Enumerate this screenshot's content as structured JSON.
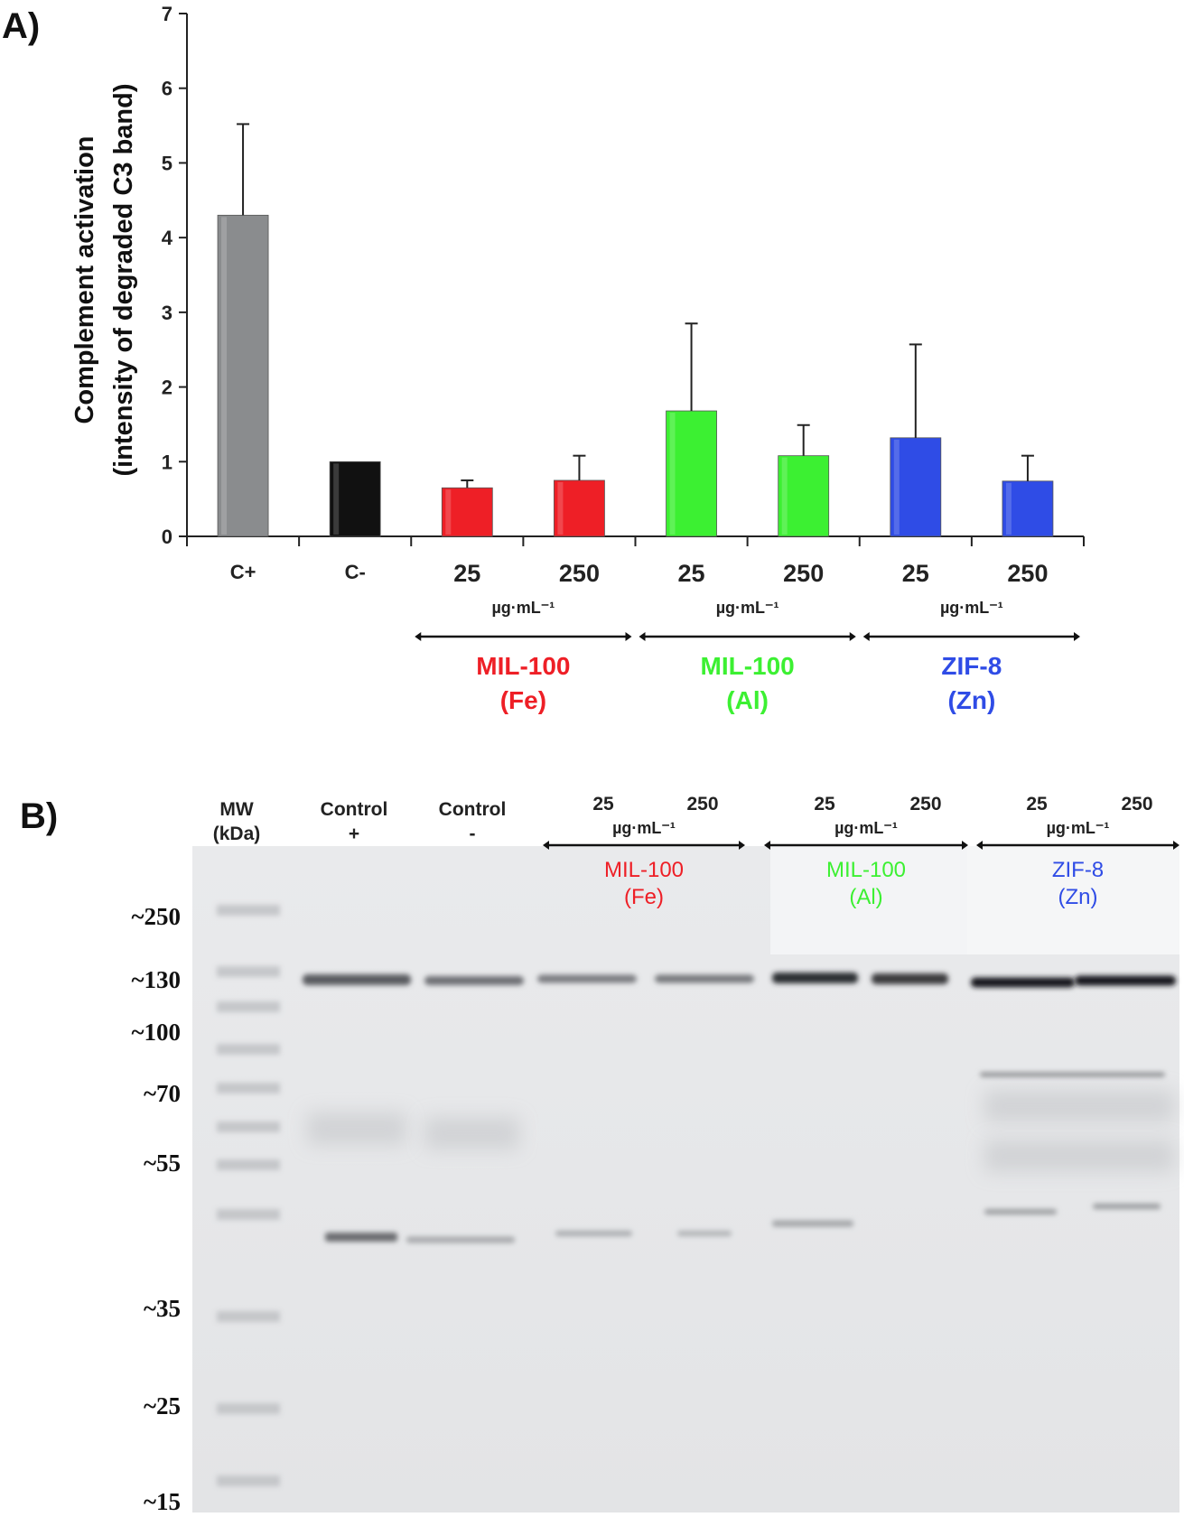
{
  "panel_a": {
    "label": "A)",
    "ylabel_line1": "Complement activation",
    "ylabel_line2": "(intensity of degraded C3 band)",
    "chart_data": {
      "type": "bar",
      "title": "",
      "ylim": [
        0,
        7
      ],
      "yticks": [
        "0",
        "1",
        "2",
        "3",
        "4",
        "5",
        "6",
        "7"
      ],
      "categories": [
        "C+",
        "C-",
        "25",
        "250",
        "25",
        "250",
        "25",
        "250"
      ],
      "values": [
        4.3,
        1.0,
        0.65,
        0.75,
        1.68,
        1.08,
        1.32,
        0.74
      ],
      "errors": [
        1.22,
        0,
        0.1,
        0.33,
        1.17,
        0.41,
        1.25,
        0.34
      ],
      "bar_colors": [
        "#8a8c8e",
        "#111111",
        "#ee1f26",
        "#ee1f26",
        "#3cf032",
        "#3cf032",
        "#2f4ce6",
        "#2f4ce6"
      ],
      "groups": [
        {
          "unit": "µg·mL⁻¹",
          "name_line1": "MIL-100",
          "name_line2": "(Fe)",
          "color": "#ee1f26"
        },
        {
          "unit": "µg·mL⁻¹",
          "name_line1": "MIL-100",
          "name_line2": "(Al)",
          "color": "#3cf032"
        },
        {
          "unit": "µg·mL⁻¹",
          "name_line1": "ZIF-8",
          "name_line2": "(Zn)",
          "color": "#2f4ce6"
        }
      ]
    }
  },
  "panel_b": {
    "label": "B)",
    "lanes": {
      "mw_line1": "MW",
      "mw_line2": "(kDa)",
      "cpos_line1": "Control",
      "cpos_line2": "+",
      "cneg_line1": "Control",
      "cneg_line2": "-"
    },
    "groups": [
      {
        "conc_low": "25",
        "conc_high": "250",
        "unit": "µg·mL⁻¹",
        "name_line1": "MIL-100",
        "name_line2": "(Fe)",
        "color": "#ee1f26"
      },
      {
        "conc_low": "25",
        "conc_high": "250",
        "unit": "µg·mL⁻¹",
        "name_line1": "MIL-100",
        "name_line2": "(Al)",
        "color": "#3cf032"
      },
      {
        "conc_low": "25",
        "conc_high": "250",
        "unit": "µg·mL⁻¹",
        "name_line1": "ZIF-8",
        "name_line2": "(Zn)",
        "color": "#2f4ce6"
      }
    ],
    "mw_markers": [
      "~250",
      "~130",
      "~100",
      "~70",
      "~55",
      "~35",
      "~25",
      "~15"
    ]
  }
}
